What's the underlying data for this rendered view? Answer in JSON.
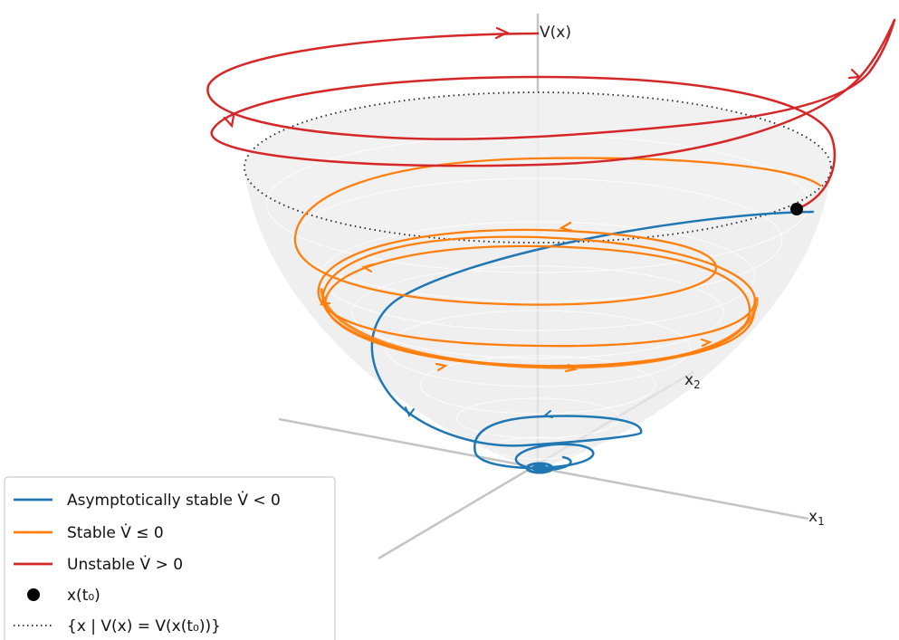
{
  "axes": {
    "vertical_label": "V(x)",
    "x1_label": "x",
    "x1_subscript": "1",
    "x2_label": "x",
    "x2_subscript": "2"
  },
  "level_set_style": "dotted",
  "colors": {
    "asymptotically_stable": "#1f77b4",
    "stable": "#ff7f0e",
    "unstable": "#d62728",
    "initial_point": "#000000",
    "surface": "#d9d9d9",
    "axis_lines": "#bdbdbd"
  },
  "legend": {
    "placement": "lower-left",
    "items": [
      {
        "kind": "line-blue",
        "text": "Asymptotically stable V̇ < 0"
      },
      {
        "kind": "line-orange",
        "text": "Stable V̇ ≤ 0"
      },
      {
        "kind": "line-red",
        "text": "Unstable V̇ > 0"
      },
      {
        "kind": "dot",
        "text": "x(t₀)"
      },
      {
        "kind": "dotted",
        "text": "{x | V(x) = V(x(t₀))}"
      }
    ]
  }
}
